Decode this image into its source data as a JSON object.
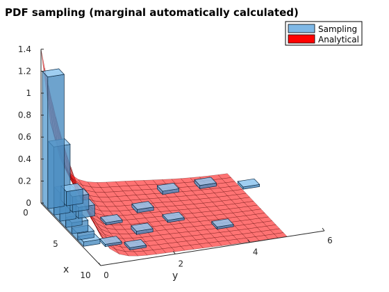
{
  "chart_data": {
    "type": "3d-bar-surface",
    "title": "PDF sampling (marginal automatically calculated)",
    "xlabel": "y",
    "ylabel": "x",
    "zlabel": "",
    "x_axis": {
      "label": "x",
      "range": [
        0,
        10
      ],
      "ticks": [
        "0",
        "5",
        "10"
      ]
    },
    "y_axis": {
      "label": "y",
      "range": [
        0,
        6
      ],
      "ticks": [
        "0",
        "2",
        "4",
        "6"
      ]
    },
    "z_axis": {
      "range": [
        0,
        1.4
      ],
      "ticks": [
        "0",
        "0.2",
        "0.4",
        "0.6",
        "0.8",
        "1",
        "1.2",
        "1.4"
      ]
    },
    "grid": false,
    "legend": {
      "placement": "top-right",
      "entries": [
        {
          "name": "Sampling",
          "color": "#7fb8e6"
        },
        {
          "name": "Analytical",
          "color": "#ff0000"
        }
      ]
    },
    "series": [
      {
        "name": "Sampling",
        "kind": "bar3",
        "color": "#7fb8e6",
        "bars": [
          {
            "x": 0.5,
            "y": 0.25,
            "z": 1.2
          },
          {
            "x": 0.5,
            "y": 0.75,
            "z": 0.13
          },
          {
            "x": 1.5,
            "y": 0.25,
            "z": 0.62
          },
          {
            "x": 1.5,
            "y": 0.75,
            "z": 0.14
          },
          {
            "x": 2.5,
            "y": 0.25,
            "z": 0.26
          },
          {
            "x": 2.5,
            "y": 0.75,
            "z": 0.1
          },
          {
            "x": 3.5,
            "y": 0.25,
            "z": 0.18
          },
          {
            "x": 4.5,
            "y": 0.25,
            "z": 0.1
          },
          {
            "x": 5.5,
            "y": 0.25,
            "z": 0.06
          },
          {
            "x": 6.5,
            "y": 0.25,
            "z": 0.04
          },
          {
            "x": 1.0,
            "y": 3.25,
            "z": 0.03
          },
          {
            "x": 1.0,
            "y": 4.25,
            "z": 0.03
          },
          {
            "x": 2.0,
            "y": 5.25,
            "z": 0.02
          },
          {
            "x": 3.0,
            "y": 2.25,
            "z": 0.03
          },
          {
            "x": 4.0,
            "y": 1.25,
            "z": 0.02
          },
          {
            "x": 5.0,
            "y": 2.75,
            "z": 0.02
          },
          {
            "x": 6.0,
            "y": 1.75,
            "z": 0.03
          },
          {
            "x": 7.0,
            "y": 0.75,
            "z": 0.02
          },
          {
            "x": 7.0,
            "y": 3.75,
            "z": 0.02
          },
          {
            "x": 8.0,
            "y": 1.25,
            "z": 0.02
          }
        ]
      },
      {
        "name": "Analytical",
        "kind": "surface",
        "color": "#ff0000",
        "x_range": [
          0,
          10
        ],
        "y_range": [
          0,
          5
        ],
        "peak": 1.35,
        "note_values": "z ≈ peak·exp(-(y/0.35)) along x=0, decaying in x"
      }
    ]
  }
}
